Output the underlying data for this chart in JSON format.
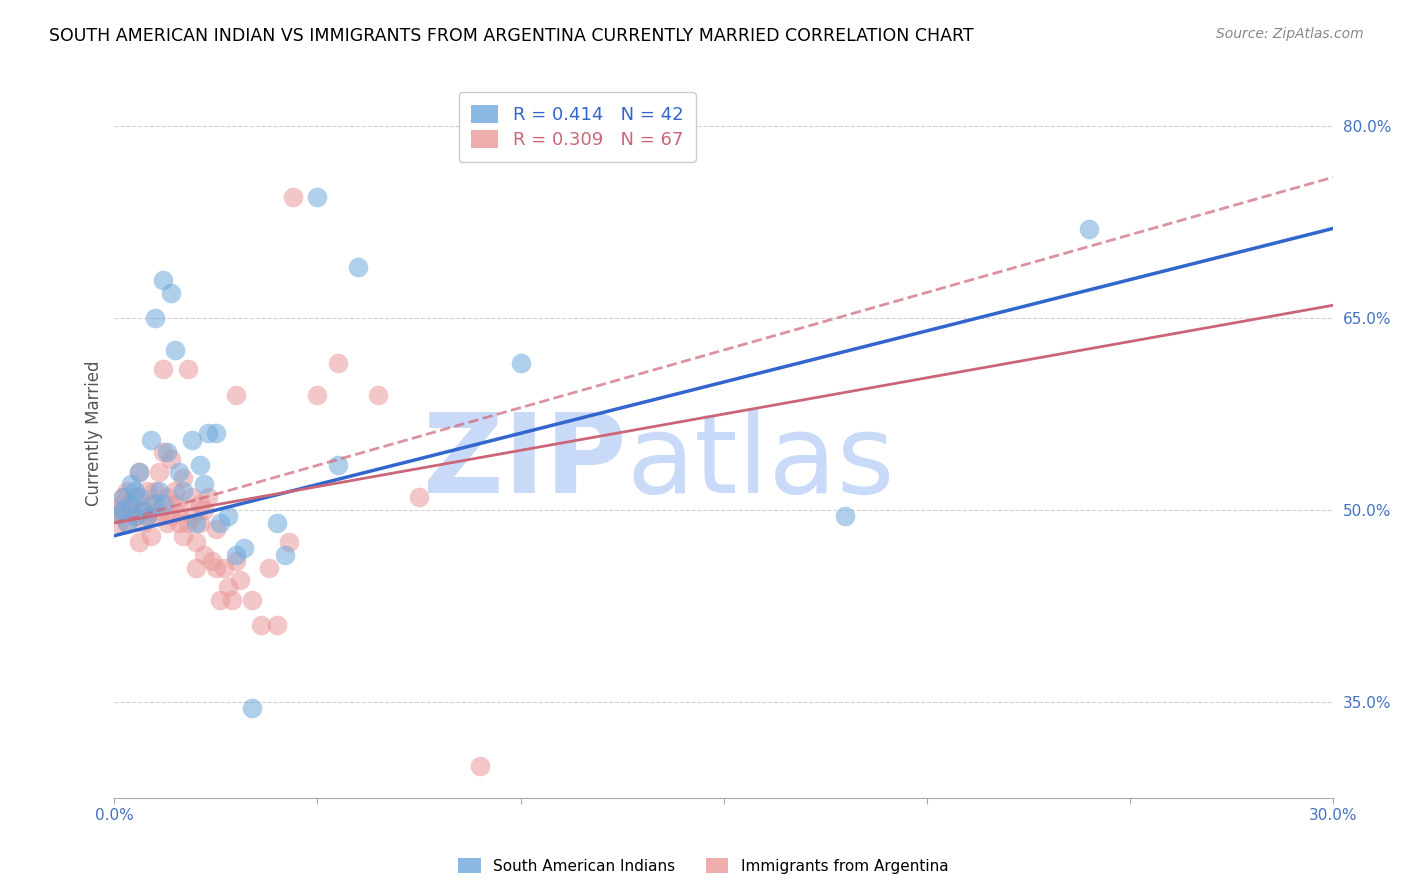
{
  "title": "SOUTH AMERICAN INDIAN VS IMMIGRANTS FROM ARGENTINA CURRENTLY MARRIED CORRELATION CHART",
  "source": "Source: ZipAtlas.com",
  "ylabel": "Currently Married",
  "xmin": 0.0,
  "xmax": 0.3,
  "ymin": 0.275,
  "ymax": 0.845,
  "ytick_positions": [
    0.35,
    0.5,
    0.65,
    0.8
  ],
  "ytick_labels": [
    "35.0%",
    "50.0%",
    "65.0%",
    "80.0%"
  ],
  "xtick_positions": [
    0.0,
    0.05,
    0.1,
    0.15,
    0.2,
    0.25,
    0.3
  ],
  "xtick_labels": [
    "0.0%",
    "",
    "",
    "",
    "",
    "",
    "30.0%"
  ],
  "blue_R": 0.414,
  "blue_N": 42,
  "pink_R": 0.309,
  "pink_N": 67,
  "blue_color": "#6fa8dc",
  "pink_color": "#ea9999",
  "blue_line_color": "#3366cc",
  "pink_line_color": "#cc6677",
  "blue_scatter": [
    [
      0.001,
      0.497
    ],
    [
      0.002,
      0.5
    ],
    [
      0.002,
      0.51
    ],
    [
      0.003,
      0.49
    ],
    [
      0.004,
      0.505
    ],
    [
      0.004,
      0.52
    ],
    [
      0.005,
      0.495
    ],
    [
      0.005,
      0.515
    ],
    [
      0.006,
      0.51
    ],
    [
      0.006,
      0.53
    ],
    [
      0.007,
      0.5
    ],
    [
      0.008,
      0.495
    ],
    [
      0.009,
      0.555
    ],
    [
      0.01,
      0.65
    ],
    [
      0.01,
      0.505
    ],
    [
      0.011,
      0.515
    ],
    [
      0.012,
      0.68
    ],
    [
      0.012,
      0.505
    ],
    [
      0.013,
      0.545
    ],
    [
      0.014,
      0.67
    ],
    [
      0.015,
      0.625
    ],
    [
      0.016,
      0.53
    ],
    [
      0.017,
      0.515
    ],
    [
      0.019,
      0.555
    ],
    [
      0.02,
      0.49
    ],
    [
      0.021,
      0.535
    ],
    [
      0.022,
      0.52
    ],
    [
      0.023,
      0.56
    ],
    [
      0.025,
      0.56
    ],
    [
      0.026,
      0.49
    ],
    [
      0.028,
      0.495
    ],
    [
      0.03,
      0.465
    ],
    [
      0.032,
      0.47
    ],
    [
      0.034,
      0.345
    ],
    [
      0.04,
      0.49
    ],
    [
      0.042,
      0.465
    ],
    [
      0.05,
      0.745
    ],
    [
      0.055,
      0.535
    ],
    [
      0.06,
      0.69
    ],
    [
      0.1,
      0.615
    ],
    [
      0.18,
      0.495
    ],
    [
      0.24,
      0.72
    ]
  ],
  "pink_scatter": [
    [
      0.001,
      0.49
    ],
    [
      0.001,
      0.5
    ],
    [
      0.002,
      0.51
    ],
    [
      0.002,
      0.495
    ],
    [
      0.002,
      0.505
    ],
    [
      0.003,
      0.515
    ],
    [
      0.003,
      0.49
    ],
    [
      0.004,
      0.505
    ],
    [
      0.004,
      0.5
    ],
    [
      0.005,
      0.51
    ],
    [
      0.005,
      0.495
    ],
    [
      0.006,
      0.53
    ],
    [
      0.006,
      0.475
    ],
    [
      0.007,
      0.5
    ],
    [
      0.007,
      0.49
    ],
    [
      0.008,
      0.515
    ],
    [
      0.008,
      0.495
    ],
    [
      0.009,
      0.505
    ],
    [
      0.009,
      0.48
    ],
    [
      0.01,
      0.515
    ],
    [
      0.01,
      0.5
    ],
    [
      0.011,
      0.53
    ],
    [
      0.011,
      0.495
    ],
    [
      0.012,
      0.61
    ],
    [
      0.012,
      0.545
    ],
    [
      0.013,
      0.51
    ],
    [
      0.013,
      0.49
    ],
    [
      0.014,
      0.54
    ],
    [
      0.014,
      0.495
    ],
    [
      0.015,
      0.515
    ],
    [
      0.015,
      0.505
    ],
    [
      0.016,
      0.5
    ],
    [
      0.016,
      0.49
    ],
    [
      0.017,
      0.525
    ],
    [
      0.017,
      0.48
    ],
    [
      0.018,
      0.61
    ],
    [
      0.018,
      0.49
    ],
    [
      0.019,
      0.51
    ],
    [
      0.019,
      0.495
    ],
    [
      0.02,
      0.455
    ],
    [
      0.02,
      0.475
    ],
    [
      0.021,
      0.505
    ],
    [
      0.021,
      0.49
    ],
    [
      0.022,
      0.5
    ],
    [
      0.022,
      0.465
    ],
    [
      0.023,
      0.51
    ],
    [
      0.024,
      0.46
    ],
    [
      0.025,
      0.455
    ],
    [
      0.025,
      0.485
    ],
    [
      0.026,
      0.43
    ],
    [
      0.027,
      0.455
    ],
    [
      0.028,
      0.44
    ],
    [
      0.029,
      0.43
    ],
    [
      0.03,
      0.59
    ],
    [
      0.03,
      0.46
    ],
    [
      0.031,
      0.445
    ],
    [
      0.034,
      0.43
    ],
    [
      0.036,
      0.41
    ],
    [
      0.038,
      0.455
    ],
    [
      0.04,
      0.41
    ],
    [
      0.043,
      0.475
    ],
    [
      0.044,
      0.745
    ],
    [
      0.05,
      0.59
    ],
    [
      0.055,
      0.615
    ],
    [
      0.065,
      0.59
    ],
    [
      0.075,
      0.51
    ],
    [
      0.09,
      0.3
    ]
  ],
  "blue_line": [
    [
      0.0,
      0.48
    ],
    [
      0.3,
      0.72
    ]
  ],
  "pink_line": [
    [
      0.0,
      0.49
    ],
    [
      0.3,
      0.66
    ]
  ],
  "pink_line_extended": [
    [
      0.0,
      0.49
    ],
    [
      0.3,
      0.76
    ]
  ],
  "watermark_zip": "ZIP",
  "watermark_atlas": "atlas",
  "watermark_color": "#c9daf8",
  "background_color": "#ffffff",
  "title_color": "#000000",
  "axis_color": "#4472c4",
  "grid_color": "#d0d0d0",
  "legend_box_color": "#cccccc"
}
